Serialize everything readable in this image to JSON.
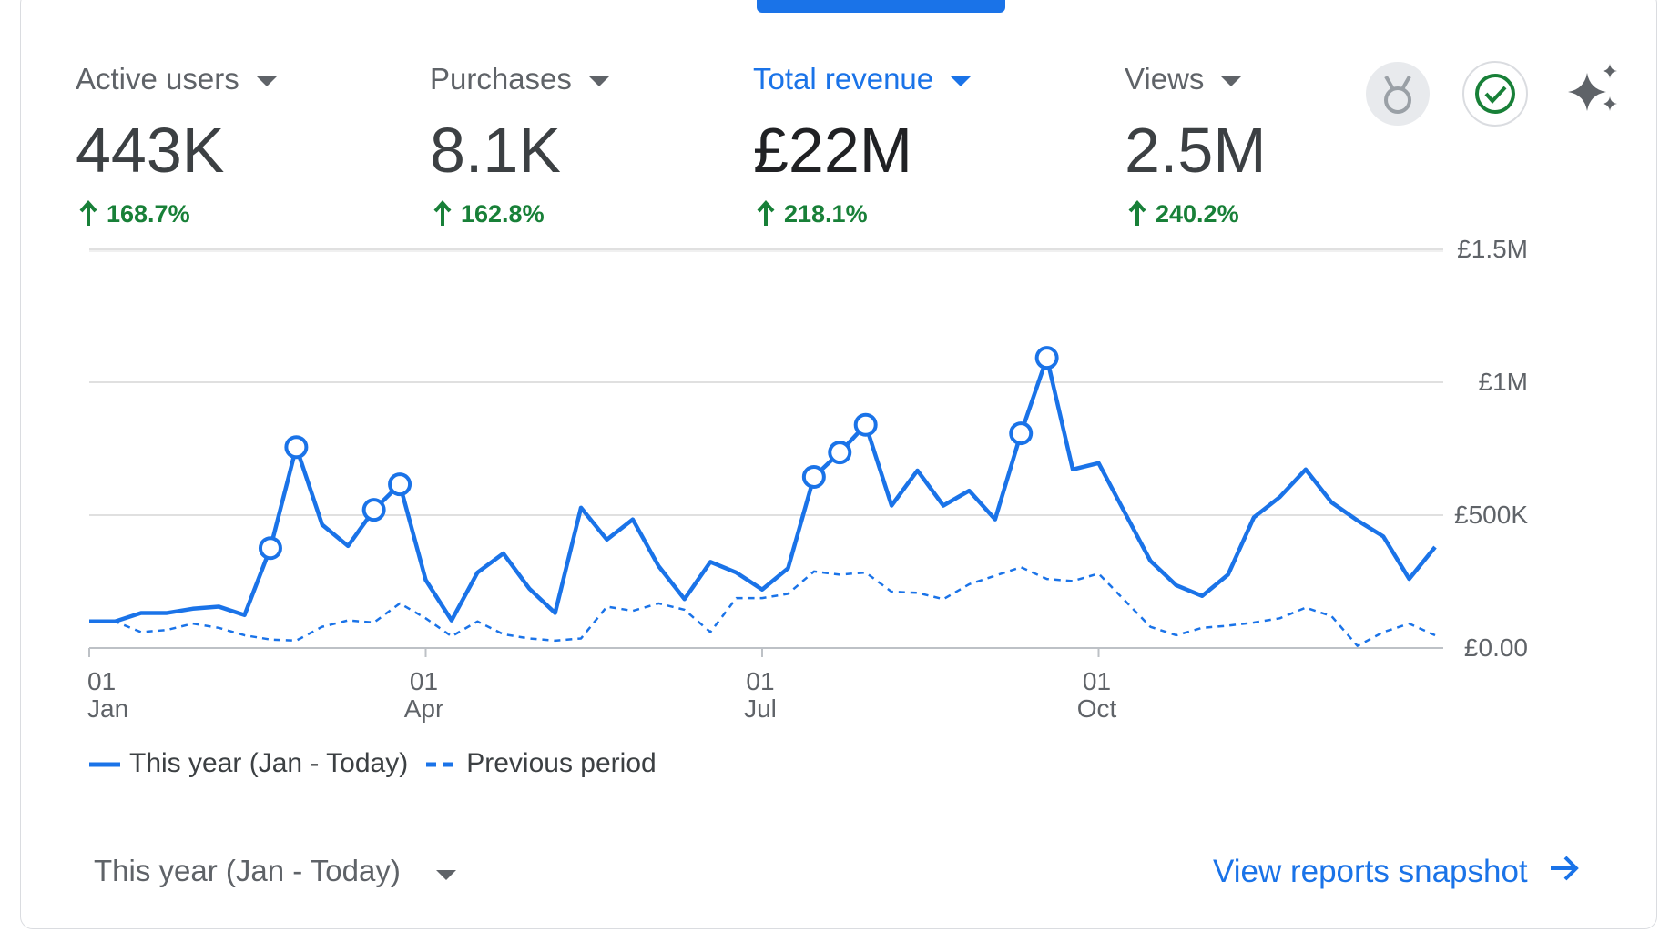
{
  "metrics": [
    {
      "label": "Active users",
      "value": "443K",
      "change": "168.7%"
    },
    {
      "label": "Purchases",
      "value": "8.1K",
      "change": "162.8%"
    },
    {
      "label": "Total revenue",
      "value": "£22M",
      "change": "218.1%",
      "active": true
    },
    {
      "label": "Views",
      "value": "2.5M",
      "change": "240.2%"
    }
  ],
  "chart_data": {
    "type": "line",
    "categories": [
      "01\nJan",
      null,
      null,
      null,
      null,
      null,
      null,
      null,
      null,
      null,
      null,
      null,
      null,
      "01\nApr",
      null,
      null,
      null,
      null,
      null,
      null,
      null,
      null,
      null,
      null,
      null,
      null,
      "01\nJul",
      null,
      null,
      null,
      null,
      null,
      null,
      null,
      null,
      null,
      null,
      null,
      null,
      "01\nOct",
      null,
      null,
      null,
      null,
      null,
      null,
      null,
      null,
      null,
      null,
      null,
      null,
      null
    ],
    "series": [
      {
        "name": "This year (Jan - Today)",
        "color": "#1a73e8",
        "dashed": false,
        "markers": [
          7,
          8,
          11,
          12,
          28,
          29,
          30,
          36,
          37
        ],
        "values": [
          100000,
          100000,
          132000,
          132000,
          148000,
          156000,
          124000,
          376000,
          756000,
          464000,
          384000,
          520000,
          616000,
          256000,
          104000,
          284000,
          356000,
          224000,
          132000,
          528000,
          408000,
          484000,
          308000,
          184000,
          324000,
          284000,
          220000,
          300000,
          644000,
          736000,
          840000,
          536000,
          668000,
          536000,
          592000,
          484000,
          808000,
          1092000,
          672000,
          696000,
          512000,
          328000,
          236000,
          196000,
          276000,
          492000,
          568000,
          672000,
          548000,
          480000,
          420000,
          260000,
          380000
        ]
      },
      {
        "name": "Previous period",
        "color": "#1a73e8",
        "dashed": true,
        "values": [
          100000,
          100000,
          60000,
          68000,
          92000,
          76000,
          48000,
          32000,
          28000,
          80000,
          104000,
          96000,
          168000,
          112000,
          44000,
          100000,
          52000,
          36000,
          28000,
          36000,
          156000,
          140000,
          168000,
          144000,
          60000,
          188000,
          188000,
          204000,
          288000,
          276000,
          284000,
          212000,
          208000,
          184000,
          240000,
          272000,
          304000,
          260000,
          252000,
          280000,
          180000,
          80000,
          48000,
          76000,
          84000,
          96000,
          112000,
          152000,
          120000,
          8000,
          60000,
          92000,
          48000
        ]
      }
    ],
    "ylim": [
      0,
      1500000
    ],
    "yticks": [
      {
        "value": 0,
        "label": "£0.00"
      },
      {
        "value": 500000,
        "label": "£500K"
      },
      {
        "value": 1000000,
        "label": "£1M"
      },
      {
        "value": 1500000,
        "label": "£1.5M"
      }
    ],
    "grid": true
  },
  "footer": {
    "period": "This year (Jan - Today)",
    "link": "View reports snapshot"
  }
}
